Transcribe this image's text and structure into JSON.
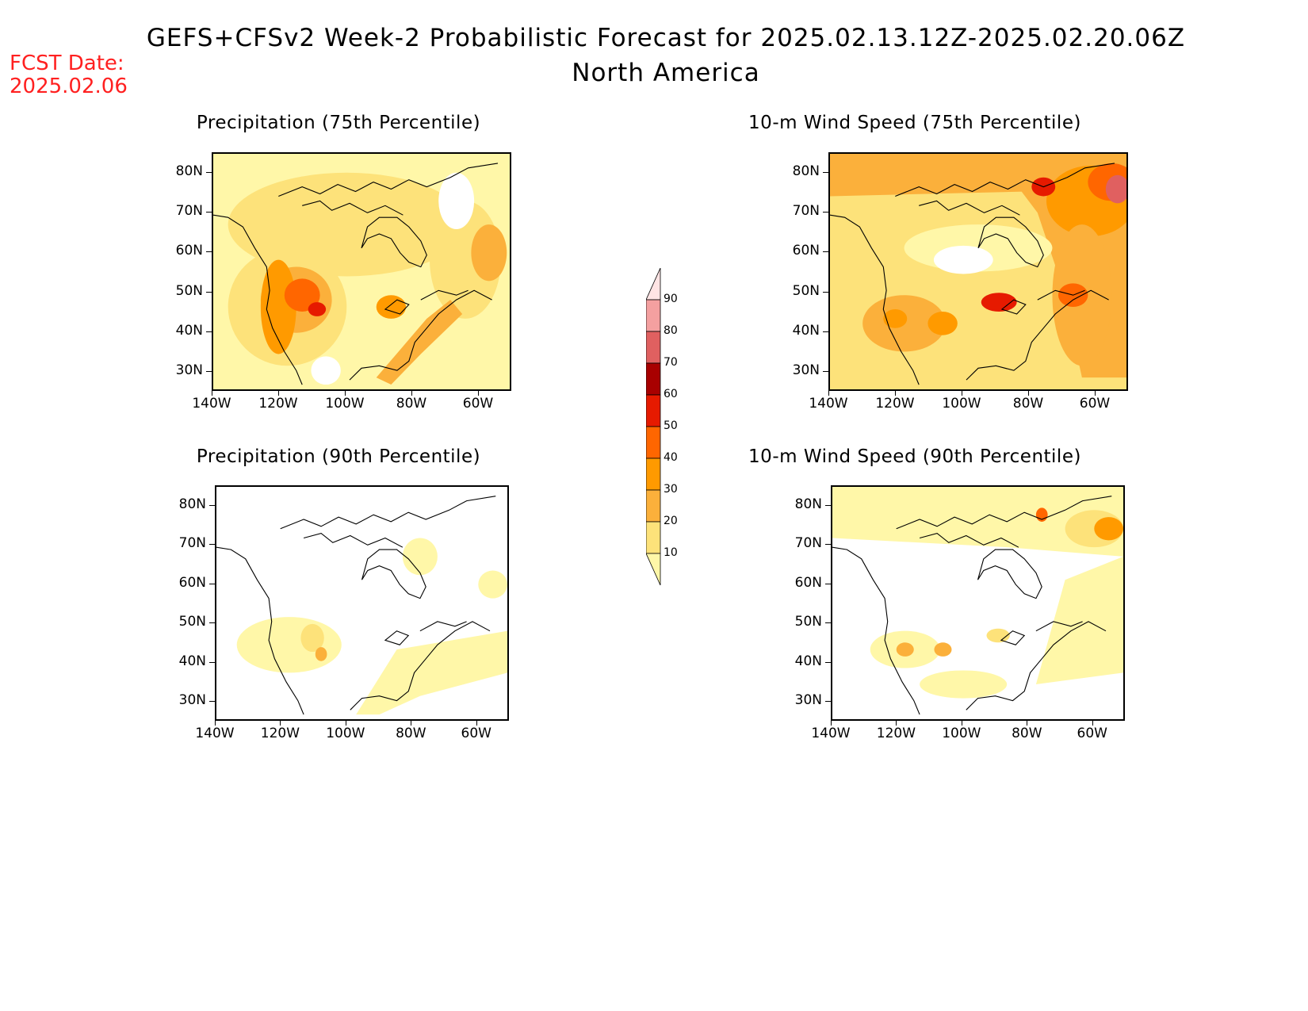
{
  "title": {
    "line1": "GEFS+CFSv2 Week-2 Probabilistic Forecast for 2025.02.13.12Z-2025.02.20.06Z",
    "line2": "North America"
  },
  "forecast_date": {
    "label": "FCST Date:",
    "value": "2025.02.06"
  },
  "panels": [
    {
      "title": "Precipitation (75th Percentile)"
    },
    {
      "title": "10-m Wind Speed (75th Percentile)"
    },
    {
      "title": "Precipitation (90th Percentile)"
    },
    {
      "title": "10-m Wind Speed (90th Percentile)"
    }
  ],
  "axes": {
    "lat_labels": [
      "80N",
      "70N",
      "60N",
      "50N",
      "40N",
      "30N"
    ],
    "lon_labels": [
      "140W",
      "120W",
      "100W",
      "80W",
      "60W"
    ],
    "lat_values": [
      80,
      70,
      60,
      50,
      40,
      30
    ],
    "lon_values": [
      -140,
      -120,
      -100,
      -80,
      -60
    ],
    "lat_range": [
      25,
      85
    ],
    "lon_range": [
      -140,
      -50
    ]
  },
  "colorbar": {
    "levels": [
      "10",
      "20",
      "30",
      "40",
      "50",
      "60",
      "70",
      "80",
      "90"
    ],
    "colors": [
      "#fff7a8",
      "#fde27a",
      "#fbb03b",
      "#ff9a00",
      "#ff6600",
      "#e61a00",
      "#a80000",
      "#e06060",
      "#f4a0a0",
      "#ffe4e4"
    ]
  }
}
